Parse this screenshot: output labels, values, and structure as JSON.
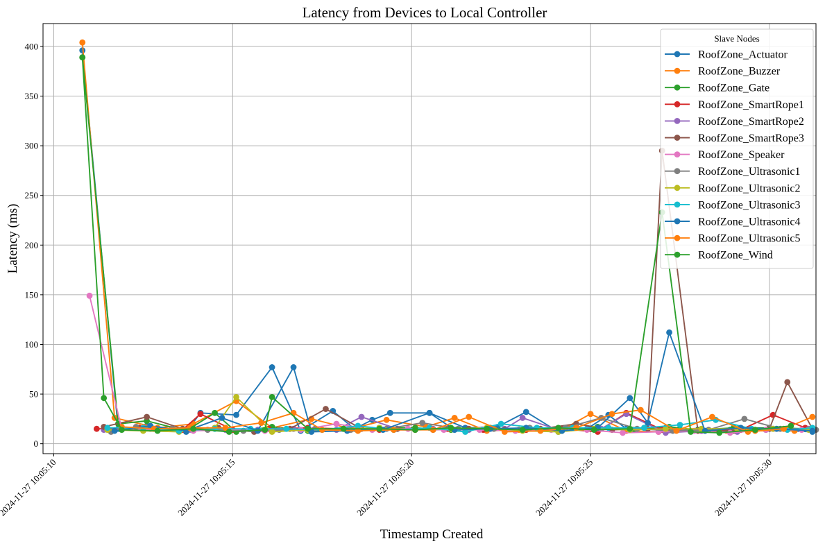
{
  "chart_data": {
    "type": "line",
    "title": "Latency from Devices to Local Controller",
    "xlabel": "Timestamp Created",
    "ylabel": "Latency (ms)",
    "x_axis_type": "datetime",
    "x_range": [
      "2024-11-27 10:05:09.7",
      "2024-11-27 10:05:31.3"
    ],
    "ylim": [
      -10,
      423
    ],
    "x_ticks": [
      "2024-11-27 10:05:10",
      "2024-11-27 10:05:15",
      "2024-11-27 10:05:20",
      "2024-11-27 10:05:25",
      "2024-11-27 10:05:30"
    ],
    "x_tick_labels": [
      "2024-11-27 10:05:10",
      "2024-11-27 10:05:15",
      "2024-11-27 10:05:20",
      "2024-11-27 10:05:25",
      "2024-11-27 10:05:30"
    ],
    "y_ticks": [
      0,
      50,
      100,
      150,
      200,
      250,
      300,
      350,
      400
    ],
    "y_tick_labels": [
      "0",
      "50",
      "100",
      "150",
      "200",
      "250",
      "300",
      "350",
      "400"
    ],
    "grid": true,
    "legend_title": "Slave Nodes",
    "legend_position": "top-right",
    "markers": "circle",
    "series": [
      {
        "name": "RoofZone_Actuator",
        "color": "#1f77b4",
        "x": [
          "10:05:10.8",
          "10:05:11.8",
          "10:05:12.6",
          "10:05:13.7",
          "10:05:14.1",
          "10:05:15.1",
          "10:05:16.1",
          "10:05:16.9",
          "10:05:17.8",
          "10:05:18.4",
          "10:05:18.9",
          "10:05:19.4",
          "10:05:20.5",
          "10:05:21.5",
          "10:05:22.4",
          "10:05:23.2",
          "10:05:24.1",
          "10:05:24.9",
          "10:05:25.5",
          "10:05:26.0",
          "10:05:26.5",
          "10:05:27.1",
          "10:05:28.0",
          "10:05:28.9",
          "10:05:29.9",
          "10:05:31.2"
        ],
        "y": [
          396,
          15,
          18,
          12,
          31,
          29,
          77,
          13,
          33,
          15,
          24,
          31,
          31,
          16,
          17,
          32,
          12,
          15,
          29,
          15,
          16,
          16,
          14,
          14,
          14,
          12
        ]
      },
      {
        "name": "RoofZone_Buzzer",
        "color": "#ff7f0e",
        "x": [
          "10:05:10.8",
          "10:05:11.7",
          "10:05:12.9",
          "10:05:13.9",
          "10:05:15.1",
          "10:05:16.1",
          "10:05:17.2",
          "10:05:18.3",
          "10:05:19.3",
          "10:05:20.4",
          "10:05:21.2",
          "10:05:22.1",
          "10:05:23.0",
          "10:05:24.2",
          "10:05:25.0",
          "10:05:26.0",
          "10:05:26.9",
          "10:05:27.8",
          "10:05:28.8",
          "10:05:29.6",
          "10:05:30.7"
        ],
        "y": [
          404,
          26,
          16,
          20,
          43,
          16,
          25,
          15,
          24,
          17,
          26,
          13,
          14,
          14,
          30,
          13,
          12,
          13,
          13,
          13,
          13
        ]
      },
      {
        "name": "RoofZone_Gate",
        "color": "#2ca02c",
        "x": [
          "10:05:10.8",
          "10:05:11.8",
          "10:05:12.6",
          "10:05:13.7",
          "10:05:14.5",
          "10:05:15.1",
          "10:05:16.1",
          "10:05:17.1",
          "10:05:18.1",
          "10:05:19.1",
          "10:05:20.1",
          "10:05:21.1",
          "10:05:22.2",
          "10:05:23.2",
          "10:05:24.2",
          "10:05:25.2",
          "10:05:26.2",
          "10:05:27.2",
          "10:05:28.0",
          "10:05:29.0",
          "10:05:30.0",
          "10:05:31.2"
        ],
        "y": [
          389,
          20,
          23,
          13,
          31,
          12,
          17,
          13,
          15,
          16,
          16,
          14,
          16,
          14,
          13,
          17,
          14,
          17,
          14,
          16,
          16,
          15
        ]
      },
      {
        "name": "RoofZone_SmartRope1",
        "color": "#d62728",
        "x": [
          "10:05:11.2",
          "10:05:12.4",
          "10:05:13.6",
          "10:05:14.1",
          "10:05:15.0",
          "10:05:16.0",
          "10:05:17.1",
          "10:05:18.1",
          "10:05:19.1",
          "10:05:20.1",
          "10:05:21.0",
          "10:05:22.0",
          "10:05:23.2",
          "10:05:24.2",
          "10:05:25.2",
          "10:05:26.0",
          "10:05:27.0",
          "10:05:28.1",
          "10:05:29.2",
          "10:05:30.1",
          "10:05:31.0"
        ],
        "y": [
          15,
          16,
          14,
          30,
          14,
          15,
          16,
          15,
          14,
          14,
          15,
          14,
          14,
          15,
          12,
          31,
          14,
          13,
          14,
          29,
          16
        ]
      },
      {
        "name": "RoofZone_SmartRope2",
        "color": "#9467bd",
        "x": [
          "10:05:11.4",
          "10:05:12.7",
          "10:05:13.8",
          "10:05:14.8",
          "10:05:15.7",
          "10:05:16.7",
          "10:05:17.9",
          "10:05:18.6",
          "10:05:19.6",
          "10:05:20.6",
          "10:05:21.6",
          "10:05:22.6",
          "10:05:23.1",
          "10:05:24.1",
          "10:05:25.3",
          "10:05:26.0",
          "10:05:27.1",
          "10:05:28.1",
          "10:05:29.1",
          "10:05:30.1",
          "10:05:31.1"
        ],
        "y": [
          14,
          15,
          14,
          14,
          14,
          15,
          14,
          27,
          15,
          15,
          14,
          15,
          26,
          14,
          15,
          30,
          11,
          13,
          12,
          15,
          15
        ]
      },
      {
        "name": "RoofZone_SmartRope3",
        "color": "#8c564b",
        "x": [
          "10:05:11.4",
          "10:05:12.6",
          "10:05:13.6",
          "10:05:14.6",
          "10:05:15.6",
          "10:05:16.6",
          "10:05:17.6",
          "10:05:18.6",
          "10:05:19.6",
          "10:05:20.6",
          "10:05:21.6",
          "10:05:22.6",
          "10:05:23.6",
          "10:05:24.6",
          "10:05:25.6",
          "10:05:26.6",
          "10:05:27.0",
          "10:05:28.0",
          "10:05:29.0",
          "10:05:30.0",
          "10:05:30.5",
          "10:05:31.2"
        ],
        "y": [
          17,
          27,
          15,
          16,
          12,
          15,
          35,
          15,
          15,
          14,
          15,
          14,
          15,
          20,
          14,
          15,
          295,
          13,
          13,
          15,
          62,
          15
        ]
      },
      {
        "name": "RoofZone_Speaker",
        "color": "#e377c2",
        "x": [
          "10:05:11.0",
          "10:05:11.9",
          "10:05:12.9",
          "10:05:13.9",
          "10:05:14.9",
          "10:05:15.9",
          "10:05:16.9",
          "10:05:17.9",
          "10:05:18.9",
          "10:05:19.9",
          "10:05:20.9",
          "10:05:21.9",
          "10:05:22.9",
          "10:05:23.9",
          "10:05:24.9",
          "10:05:25.9",
          "10:05:26.9",
          "10:05:27.9",
          "10:05:28.9",
          "10:05:29.9",
          "10:05:30.9"
        ],
        "y": [
          149,
          15,
          14,
          13,
          14,
          13,
          14,
          20,
          14,
          15,
          14,
          14,
          13,
          14,
          14,
          11,
          12,
          13,
          11,
          14,
          14
        ]
      },
      {
        "name": "RoofZone_Ultrasonic1",
        "color": "#7f7f7f",
        "x": [
          "10:05:11.6",
          "10:05:12.3",
          "10:05:13.3",
          "10:05:14.3",
          "10:05:15.3",
          "10:05:16.3",
          "10:05:17.3",
          "10:05:18.3",
          "10:05:19.3",
          "10:05:20.3",
          "10:05:21.3",
          "10:05:22.3",
          "10:05:23.3",
          "10:05:24.3",
          "10:05:25.3",
          "10:05:26.3",
          "10:05:27.3",
          "10:05:28.3",
          "10:05:29.3",
          "10:05:30.3",
          "10:05:31.3"
        ],
        "y": [
          12,
          17,
          15,
          14,
          13,
          14,
          15,
          14,
          15,
          21,
          15,
          15,
          16,
          16,
          26,
          15,
          13,
          14,
          25,
          15,
          14
        ]
      },
      {
        "name": "RoofZone_Ultrasonic2",
        "color": "#bcbd22",
        "x": [
          "10:05:11.5",
          "10:05:12.5",
          "10:05:13.5",
          "10:05:14.5",
          "10:05:15.1",
          "10:05:16.1",
          "10:05:17.1",
          "10:05:18.1",
          "10:05:19.1",
          "10:05:20.1",
          "10:05:21.1",
          "10:05:22.1",
          "10:05:23.1",
          "10:05:24.1",
          "10:05:25.1",
          "10:05:26.1",
          "10:05:27.1",
          "10:05:28.1",
          "10:05:29.1",
          "10:05:30.1",
          "10:05:31.1"
        ],
        "y": [
          14,
          13,
          12,
          16,
          47,
          12,
          14,
          15,
          16,
          14,
          15,
          16,
          13,
          12,
          15,
          14,
          15,
          15,
          15,
          15,
          14
        ]
      },
      {
        "name": "RoofZone_Ultrasonic3",
        "color": "#17becf",
        "x": [
          "10:05:11.5",
          "10:05:12.5",
          "10:05:13.5",
          "10:05:14.5",
          "10:05:15.5",
          "10:05:16.5",
          "10:05:17.5",
          "10:05:18.5",
          "10:05:19.5",
          "10:05:20.5",
          "10:05:21.5",
          "10:05:22.5",
          "10:05:23.5",
          "10:05:24.5",
          "10:05:25.5",
          "10:05:26.5",
          "10:05:27.5",
          "10:05:28.5",
          "10:05:29.5",
          "10:05:30.5",
          "10:05:31.2"
        ],
        "y": [
          16,
          16,
          13,
          15,
          15,
          15,
          14,
          18,
          14,
          16,
          12,
          20,
          16,
          16,
          16,
          16,
          19,
          24,
          15,
          14,
          16
        ]
      },
      {
        "name": "RoofZone_Ultrasonic4",
        "color": "#1f77b4",
        "x": [
          "10:05:11.7",
          "10:05:12.7",
          "10:05:13.7",
          "10:05:14.7",
          "10:05:15.7",
          "10:05:16.7",
          "10:05:17.2",
          "10:05:18.2",
          "10:05:19.2",
          "10:05:20.5",
          "10:05:21.2",
          "10:05:22.2",
          "10:05:23.2",
          "10:05:24.2",
          "10:05:25.2",
          "10:05:26.1",
          "10:05:26.6",
          "10:05:27.2",
          "10:05:28.2",
          "10:05:29.2",
          "10:05:30.2",
          "10:05:31.2"
        ],
        "y": [
          13,
          18,
          13,
          26,
          13,
          77,
          12,
          13,
          14,
          31,
          14,
          15,
          16,
          13,
          16,
          46,
          21,
          112,
          13,
          16,
          15,
          13
        ]
      },
      {
        "name": "RoofZone_Ultrasonic5",
        "color": "#ff7f0e",
        "x": [
          "10:05:11.9",
          "10:05:12.8",
          "10:05:13.8",
          "10:05:14.8",
          "10:05:15.8",
          "10:05:16.7",
          "10:05:17.5",
          "10:05:18.5",
          "10:05:19.5",
          "10:05:20.6",
          "10:05:21.6",
          "10:05:22.6",
          "10:05:23.6",
          "10:05:24.6",
          "10:05:25.6",
          "10:05:26.4",
          "10:05:27.4",
          "10:05:28.4",
          "10:05:29.4",
          "10:05:30.4",
          "10:05:31.2"
        ],
        "y": [
          17,
          15,
          16,
          16,
          21,
          31,
          14,
          13,
          14,
          14,
          27,
          12,
          13,
          16,
          30,
          34,
          13,
          27,
          12,
          15,
          27
        ]
      },
      {
        "name": "RoofZone_Wind",
        "color": "#2ca02c",
        "x": [
          "10:05:10.8",
          "10:05:11.4",
          "10:05:11.9",
          "10:05:12.9",
          "10:05:13.9",
          "10:05:14.9",
          "10:05:15.9",
          "10:05:16.1",
          "10:05:17.1",
          "10:05:18.1",
          "10:05:19.1",
          "10:05:20.1",
          "10:05:21.1",
          "10:05:22.1",
          "10:05:23.1",
          "10:05:24.1",
          "10:05:25.1",
          "10:05:26.1",
          "10:05:27.0",
          "10:05:27.8",
          "10:05:28.6",
          "10:05:29.6",
          "10:05:30.6"
        ],
        "y": [
          389,
          46,
          14,
          13,
          15,
          12,
          14,
          47,
          15,
          15,
          15,
          14,
          16,
          15,
          14,
          16,
          14,
          15,
          233,
          12,
          11,
          14,
          18
        ]
      }
    ]
  }
}
